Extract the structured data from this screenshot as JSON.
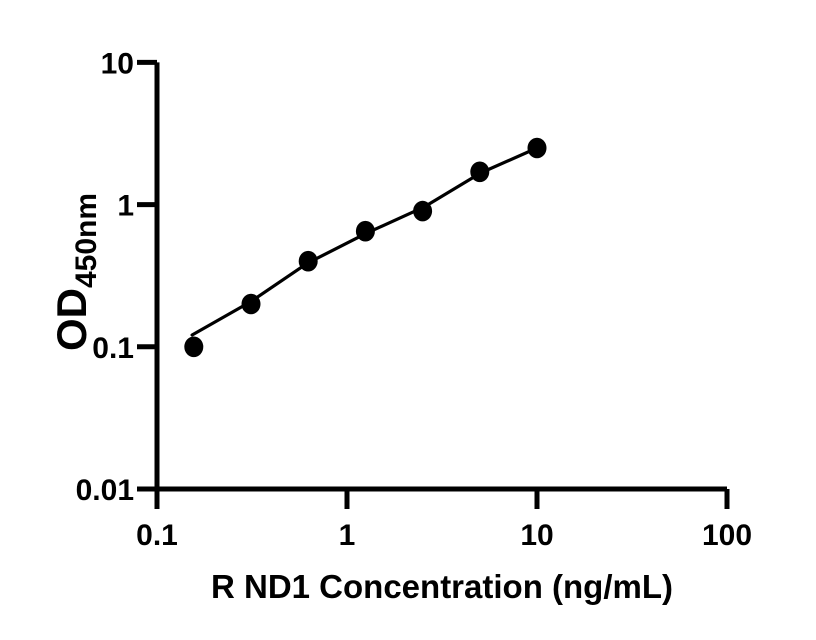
{
  "chart_data": {
    "type": "scatter",
    "title": "",
    "xlabel": "R ND1 Concentration (ng/mL)",
    "ylabel": "OD",
    "ylabel_subscript": "450nm",
    "xscale": "log",
    "yscale": "log",
    "xlim": [
      0.1,
      100
    ],
    "ylim": [
      0.01,
      10
    ],
    "x_ticks": [
      0.1,
      1,
      10,
      100
    ],
    "x_tick_labels": [
      "0.1",
      "1",
      "10",
      "100"
    ],
    "y_ticks": [
      0.01,
      0.1,
      1,
      10
    ],
    "y_tick_labels": [
      "0.01",
      "0.1",
      "1",
      "10"
    ],
    "grid": false,
    "legend": null,
    "axis_color": "#000000",
    "background_color": "#ffffff",
    "series": [
      {
        "name": "standard-points",
        "kind": "scatter",
        "marker": "filled-circle",
        "color": "#000000",
        "x": [
          0.15625,
          0.3125,
          0.625,
          1.25,
          2.5,
          5,
          10
        ],
        "y": [
          0.1,
          0.2,
          0.4,
          0.65,
          0.9,
          1.7,
          2.5
        ]
      },
      {
        "name": "fit-line",
        "kind": "line",
        "color": "#000000",
        "x": [
          0.153,
          0.31,
          0.62,
          1.27,
          2.54,
          5.06,
          10
        ],
        "y": [
          0.121,
          0.207,
          0.388,
          0.63,
          0.96,
          1.67,
          2.5
        ]
      }
    ]
  }
}
